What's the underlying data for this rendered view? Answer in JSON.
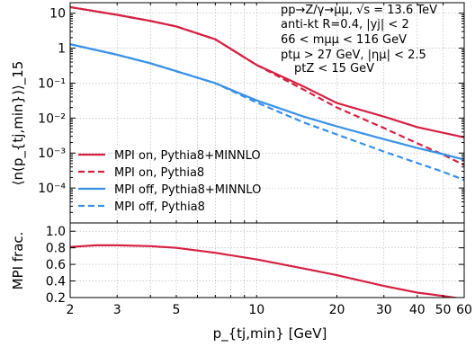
{
  "chart_data": [
    {
      "type": "line",
      "panel": "main",
      "ylabel": "⟨n(p_{tj,min})⟩_15",
      "yscale": "log",
      "xscale": "log",
      "xlim": [
        2,
        60
      ],
      "ylim": [
        1e-05,
        20
      ],
      "grid": true,
      "legend_position": "lower-left",
      "annotations": [
        "pp→Z/γ→μμ, √s = 13.6 TeV",
        "anti-kt R=0.4, |yj| < 2",
        "66 < mμμ < 116 GeV",
        "ptμ > 27 GeV, |ημ| < 2.5",
        "ptZ < 15 GeV"
      ],
      "x_ticks": [
        "2",
        "3",
        "5",
        "10",
        "20",
        "30",
        "40",
        "50",
        "60"
      ],
      "x_tick_values": [
        2,
        3,
        5,
        10,
        20,
        30,
        40,
        50,
        60
      ],
      "y_ticks": [
        "10",
        "1",
        "10⁻¹",
        "10⁻²",
        "10⁻³",
        "10⁻⁴"
      ],
      "y_tick_values": [
        10,
        1,
        0.1,
        0.01,
        0.001,
        0.0001
      ],
      "x": [
        2,
        3,
        4,
        5,
        7,
        10,
        15,
        20,
        30,
        40,
        50,
        60
      ],
      "series": [
        {
          "name": "MPI on, Pythia8+MINNLO",
          "color": "#d62042",
          "dash": "solid",
          "values": [
            15,
            9,
            6,
            4.2,
            1.8,
            0.33,
            0.08,
            0.027,
            0.011,
            0.0055,
            0.0038,
            0.0028
          ]
        },
        {
          "name": "MPI on, Pythia8",
          "color": "#d62042",
          "dash": "dashed",
          "values": [
            15,
            9,
            6,
            4.2,
            1.8,
            0.33,
            0.065,
            0.02,
            0.0052,
            0.0019,
            0.0009,
            0.00045
          ]
        },
        {
          "name": "MPI off, Pythia8+MINNLO",
          "color": "#3891e8",
          "dash": "solid",
          "values": [
            1.3,
            0.65,
            0.37,
            0.22,
            0.1,
            0.032,
            0.011,
            0.0058,
            0.0025,
            0.0014,
            0.00093,
            0.00065
          ]
        },
        {
          "name": "MPI off, Pythia8",
          "color": "#3891e8",
          "dash": "dashed",
          "values": [
            1.3,
            0.65,
            0.37,
            0.22,
            0.1,
            0.028,
            0.0075,
            0.0034,
            0.0011,
            0.00052,
            0.00029,
            0.00017
          ]
        }
      ]
    },
    {
      "type": "line",
      "panel": "ratio",
      "ylabel": "MPI frac.",
      "xlabel": "p_{tj,min} [GeV]",
      "xscale": "log",
      "xlim": [
        2,
        60
      ],
      "ylim": [
        0.2,
        1.1
      ],
      "grid": true,
      "y_ticks": [
        "1.0",
        "0.8",
        "0.6",
        "0.4",
        "0.2"
      ],
      "y_tick_values": [
        1.0,
        0.8,
        0.6,
        0.4,
        0.2
      ],
      "x": [
        2,
        2.5,
        3,
        4,
        5,
        7,
        10,
        15,
        20,
        30,
        40,
        50,
        60
      ],
      "series": [
        {
          "name": "MPI frac.",
          "color": "#d62042",
          "dash": "solid",
          "values": [
            0.81,
            0.83,
            0.83,
            0.82,
            0.8,
            0.74,
            0.66,
            0.55,
            0.47,
            0.34,
            0.26,
            0.22,
            0.18
          ]
        }
      ]
    }
  ]
}
